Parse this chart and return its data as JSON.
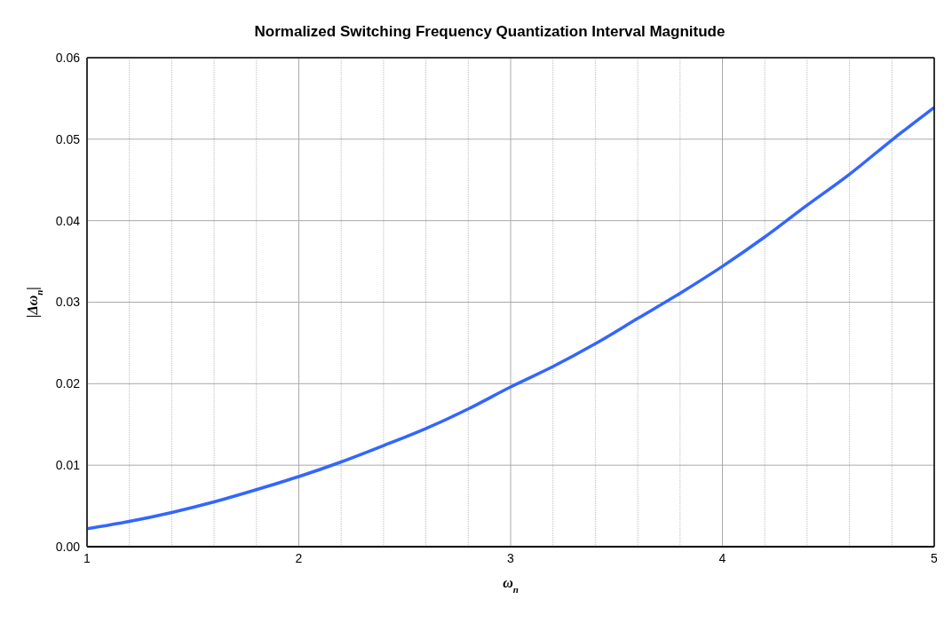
{
  "chart_data": {
    "type": "line",
    "title": "Normalized Switching Frequency Quantization Interval Magnitude",
    "xlabel": "ω$_{n}$",
    "ylabel": "|Δω$_{n}$|",
    "x": [
      1,
      1.2,
      1.4,
      1.6,
      1.8,
      2,
      2.2,
      2.4,
      2.6,
      2.8,
      3,
      3.2,
      3.4,
      3.6,
      3.8,
      4,
      4.2,
      4.4,
      4.6,
      4.8,
      5
    ],
    "series": [
      {
        "color": "#3366ff",
        "values": [
          0.0022,
          0.0031,
          0.0042,
          0.0055,
          0.007,
          0.0086,
          0.0104,
          0.0124,
          0.0145,
          0.0169,
          0.0196,
          0.0221,
          0.0249,
          0.028,
          0.0311,
          0.0344,
          0.038,
          0.0419,
          0.0457,
          0.0499,
          0.0539
        ]
      }
    ],
    "xlim": [
      1,
      5
    ],
    "xticks": [
      1,
      {
        "value": 1.2,
        "label": null
      },
      {
        "value": 1.4,
        "label": null
      },
      {
        "value": 1.6,
        "label": null
      },
      {
        "value": 1.8,
        "label": null
      },
      2,
      {
        "value": 2.2,
        "label": null
      },
      {
        "value": 2.4,
        "label": null
      },
      {
        "value": 2.6,
        "label": null
      },
      {
        "value": 2.8,
        "label": null
      },
      3,
      {
        "value": 3.2,
        "label": null
      },
      {
        "value": 3.4,
        "label": null
      },
      {
        "value": 3.6,
        "label": null
      },
      {
        "value": 3.8,
        "label": null
      },
      4,
      {
        "value": 4.2,
        "label": null
      },
      {
        "value": 4.4,
        "label": null
      },
      {
        "value": 4.6,
        "label": null
      },
      {
        "value": 4.8,
        "label": null
      },
      5
    ],
    "ylim": [
      0,
      0.06
    ],
    "yticks": [
      {
        "value": 0,
        "label": "0.00"
      },
      0.01,
      0.02,
      0.03,
      0.04,
      0.05,
      0.06
    ],
    "grid": true,
    "legend": false,
    "marker": "none",
    "line_style": "solid"
  }
}
